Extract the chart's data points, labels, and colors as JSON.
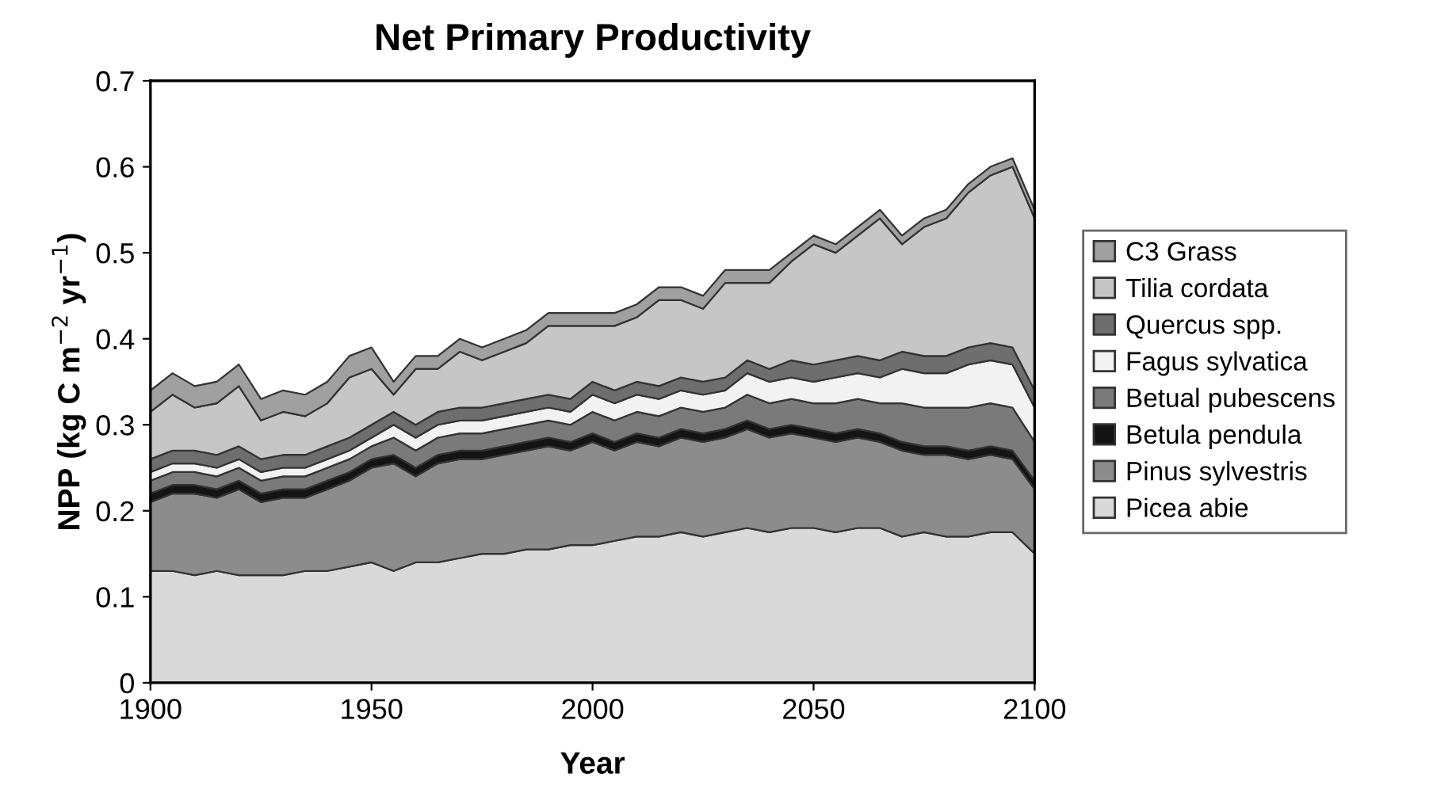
{
  "chart_data": {
    "type": "area",
    "stacked": true,
    "title": "Net Primary Productivity",
    "xlabel": "Year",
    "ylabel": "NPP (kg C m$^{−2}$ yr$^{−1}$)",
    "x": [
      1900,
      1905,
      1910,
      1915,
      1920,
      1925,
      1930,
      1935,
      1940,
      1945,
      1950,
      1955,
      1960,
      1965,
      1970,
      1975,
      1980,
      1985,
      1990,
      1995,
      2000,
      2005,
      2010,
      2015,
      2020,
      2025,
      2030,
      2035,
      2040,
      2045,
      2050,
      2055,
      2060,
      2065,
      2070,
      2075,
      2080,
      2085,
      2090,
      2095,
      2100
    ],
    "xlim": [
      1900,
      2100
    ],
    "xticks": [
      1900,
      1950,
      2000,
      2050,
      2100
    ],
    "ylim": [
      0,
      0.7
    ],
    "yticks": [
      0,
      0.1,
      0.2,
      0.3,
      0.4,
      0.5,
      0.6,
      0.7
    ],
    "grid": false,
    "legend": "right",
    "series": [
      {
        "name": "Picea abie",
        "color": "#d9d9d9",
        "values": [
          0.13,
          0.13,
          0.125,
          0.13,
          0.125,
          0.125,
          0.125,
          0.13,
          0.13,
          0.135,
          0.14,
          0.13,
          0.14,
          0.14,
          0.145,
          0.15,
          0.15,
          0.155,
          0.155,
          0.16,
          0.16,
          0.165,
          0.17,
          0.17,
          0.175,
          0.17,
          0.175,
          0.18,
          0.175,
          0.18,
          0.18,
          0.175,
          0.18,
          0.18,
          0.17,
          0.175,
          0.17,
          0.17,
          0.175,
          0.175,
          0.15
        ]
      },
      {
        "name": "Pinus sylvestris",
        "color": "#8c8c8c",
        "values": [
          0.08,
          0.09,
          0.095,
          0.085,
          0.1,
          0.085,
          0.09,
          0.085,
          0.095,
          0.1,
          0.11,
          0.125,
          0.1,
          0.115,
          0.115,
          0.11,
          0.115,
          0.115,
          0.12,
          0.11,
          0.12,
          0.105,
          0.11,
          0.105,
          0.11,
          0.11,
          0.11,
          0.115,
          0.11,
          0.11,
          0.105,
          0.105,
          0.105,
          0.1,
          0.1,
          0.09,
          0.095,
          0.09,
          0.09,
          0.085,
          0.075
        ]
      },
      {
        "name": "Betula pendula",
        "color": "#141414",
        "values": [
          0.01,
          0.01,
          0.01,
          0.01,
          0.01,
          0.01,
          0.01,
          0.01,
          0.01,
          0.01,
          0.01,
          0.01,
          0.01,
          0.01,
          0.01,
          0.01,
          0.01,
          0.01,
          0.01,
          0.01,
          0.01,
          0.01,
          0.01,
          0.01,
          0.01,
          0.01,
          0.01,
          0.01,
          0.01,
          0.01,
          0.01,
          0.01,
          0.01,
          0.01,
          0.01,
          0.01,
          0.01,
          0.01,
          0.01,
          0.01,
          0.01
        ]
      },
      {
        "name": "Betual pubescens",
        "color": "#7a7a7a",
        "values": [
          0.015,
          0.015,
          0.015,
          0.015,
          0.015,
          0.015,
          0.015,
          0.015,
          0.015,
          0.015,
          0.015,
          0.02,
          0.02,
          0.02,
          0.02,
          0.02,
          0.02,
          0.02,
          0.02,
          0.02,
          0.025,
          0.025,
          0.025,
          0.025,
          0.025,
          0.025,
          0.025,
          0.03,
          0.03,
          0.03,
          0.03,
          0.035,
          0.035,
          0.035,
          0.045,
          0.045,
          0.045,
          0.05,
          0.05,
          0.05,
          0.045
        ]
      },
      {
        "name": "Fagus sylvatica",
        "color": "#f2f2f2",
        "values": [
          0.01,
          0.01,
          0.01,
          0.01,
          0.01,
          0.01,
          0.01,
          0.01,
          0.01,
          0.01,
          0.01,
          0.015,
          0.015,
          0.015,
          0.015,
          0.015,
          0.015,
          0.015,
          0.015,
          0.015,
          0.02,
          0.02,
          0.02,
          0.02,
          0.02,
          0.02,
          0.02,
          0.025,
          0.025,
          0.025,
          0.025,
          0.03,
          0.03,
          0.03,
          0.04,
          0.04,
          0.04,
          0.05,
          0.05,
          0.05,
          0.04
        ]
      },
      {
        "name": "Quercus spp.",
        "color": "#6e6e6e",
        "values": [
          0.015,
          0.015,
          0.015,
          0.015,
          0.015,
          0.015,
          0.015,
          0.015,
          0.015,
          0.015,
          0.015,
          0.015,
          0.015,
          0.015,
          0.015,
          0.015,
          0.015,
          0.015,
          0.015,
          0.015,
          0.015,
          0.015,
          0.015,
          0.015,
          0.015,
          0.015,
          0.015,
          0.015,
          0.015,
          0.02,
          0.02,
          0.02,
          0.02,
          0.02,
          0.02,
          0.02,
          0.02,
          0.02,
          0.02,
          0.02,
          0.02
        ]
      },
      {
        "name": "Tilia cordata",
        "color": "#c6c6c6",
        "values": [
          0.055,
          0.065,
          0.05,
          0.06,
          0.07,
          0.045,
          0.05,
          0.045,
          0.05,
          0.07,
          0.065,
          0.02,
          0.065,
          0.05,
          0.065,
          0.055,
          0.06,
          0.065,
          0.08,
          0.085,
          0.065,
          0.075,
          0.075,
          0.1,
          0.09,
          0.085,
          0.11,
          0.09,
          0.1,
          0.115,
          0.14,
          0.125,
          0.14,
          0.165,
          0.125,
          0.15,
          0.16,
          0.18,
          0.195,
          0.21,
          0.2
        ]
      },
      {
        "name": "C3 Grass",
        "color": "#a0a0a0",
        "values": [
          0.025,
          0.025,
          0.025,
          0.025,
          0.025,
          0.025,
          0.025,
          0.025,
          0.025,
          0.025,
          0.025,
          0.015,
          0.015,
          0.015,
          0.015,
          0.015,
          0.015,
          0.015,
          0.015,
          0.015,
          0.015,
          0.015,
          0.015,
          0.015,
          0.015,
          0.015,
          0.015,
          0.015,
          0.015,
          0.01,
          0.01,
          0.01,
          0.01,
          0.01,
          0.01,
          0.01,
          0.01,
          0.01,
          0.01,
          0.01,
          0.01
        ]
      }
    ]
  }
}
